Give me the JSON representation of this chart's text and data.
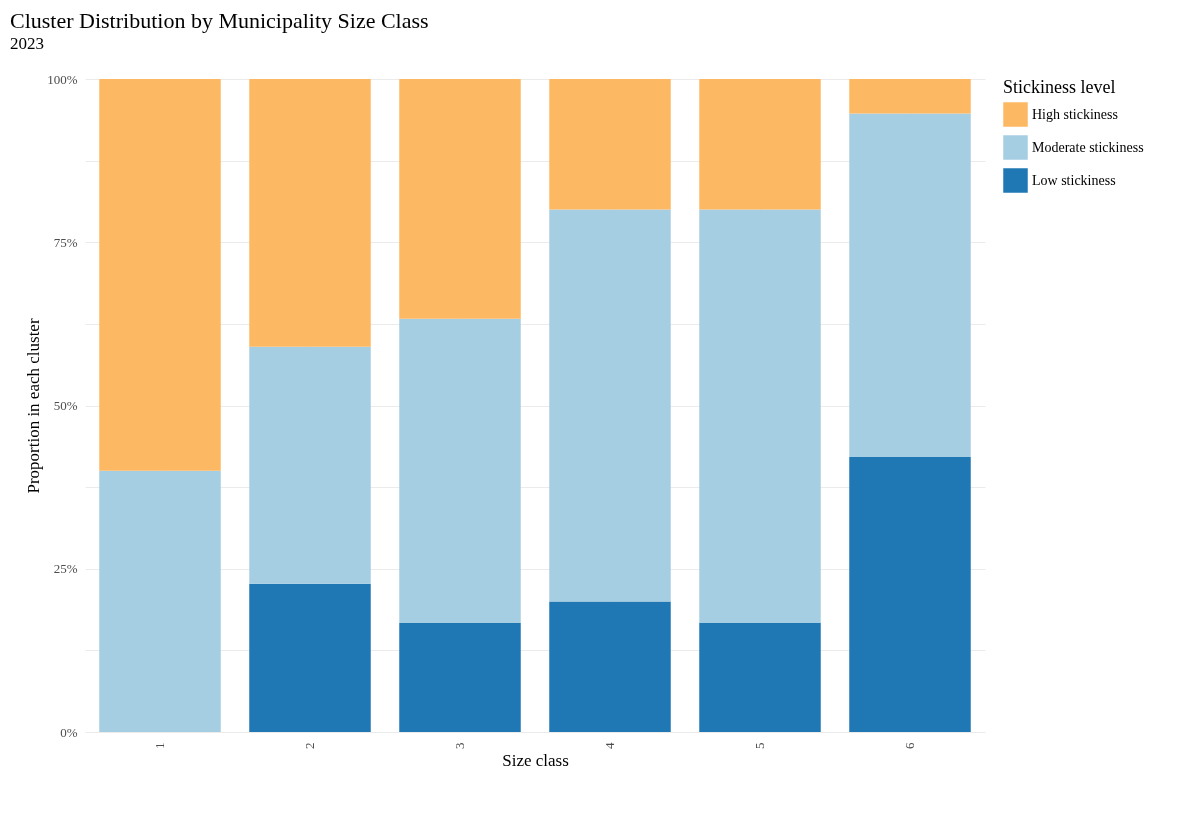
{
  "chart_data": {
    "type": "bar",
    "title": "Cluster Distribution by Municipality Size Class",
    "subtitle": "2023",
    "xlabel": "Size class",
    "ylabel": "Proportion in each cluster",
    "legend_title": "Stickiness level",
    "categories": [
      "1",
      "2",
      "3",
      "4",
      "5",
      "6"
    ],
    "stacked": true,
    "series": [
      {
        "name": "Low stickiness",
        "color": "#1f78b4",
        "values": [
          0,
          22.7,
          16.7,
          20,
          16.7,
          42.1
        ]
      },
      {
        "name": "Moderate stickiness",
        "color": "#a6cee3",
        "values": [
          40,
          36.3,
          46.6,
          60,
          63.3,
          52.6
        ]
      },
      {
        "name": "High stickiness",
        "color": "#fdb863",
        "values": [
          60,
          41,
          36.7,
          20,
          20,
          5.3
        ]
      }
    ],
    "ylim": [
      0,
      100
    ],
    "yticks": [
      {
        "value": 0,
        "label": "0%"
      },
      {
        "value": 12.5,
        "label": null
      },
      {
        "value": 25,
        "label": "25%"
      },
      {
        "value": 37.5,
        "label": null
      },
      {
        "value": 50,
        "label": "50%"
      },
      {
        "value": 62.5,
        "label": null
      },
      {
        "value": 75,
        "label": "75%"
      },
      {
        "value": 87.5,
        "label": null
      },
      {
        "value": 100,
        "label": "100%"
      }
    ],
    "grid": true,
    "legend": "right"
  }
}
